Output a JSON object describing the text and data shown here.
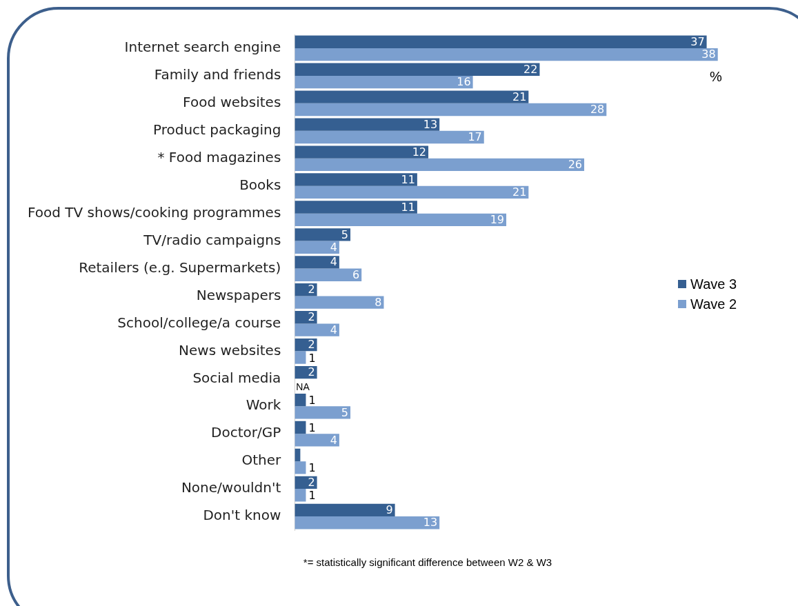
{
  "chart_data": {
    "type": "bar",
    "orientation": "horizontal",
    "categories": [
      "Internet search engine",
      "Family and friends",
      "Food websites",
      "Product packaging",
      "* Food magazines",
      "Books",
      "Food TV shows/cooking programmes",
      "TV/radio campaigns",
      "Retailers (e.g. Supermarkets)",
      "Newspapers",
      "School/college/a course",
      "News websites",
      "Social media",
      "Work",
      "Doctor/GP",
      "Other",
      "None/wouldn't",
      "Don't know"
    ],
    "series": [
      {
        "name": "Wave 3",
        "color": "#355f91",
        "values": [
          37,
          22,
          21,
          13,
          12,
          11,
          11,
          5,
          4,
          2,
          2,
          2,
          2,
          1,
          1,
          0.5,
          2,
          9
        ],
        "value_labels": [
          "37",
          "22",
          "21",
          "13",
          "12",
          "11",
          "11",
          "5",
          "4",
          "2",
          "2",
          "2",
          "2",
          "1",
          "1",
          null,
          "2",
          "9"
        ]
      },
      {
        "name": "Wave 2",
        "color": "#7b9fcf",
        "values": [
          38,
          16,
          28,
          17,
          26,
          21,
          19,
          4,
          6,
          8,
          4,
          1,
          null,
          5,
          4,
          1,
          1,
          13
        ],
        "value_labels": [
          "38",
          "16",
          "28",
          "17",
          "26",
          "21",
          "19",
          "4",
          "6",
          "8",
          "4",
          "1",
          "NA",
          "5",
          "4",
          "1",
          "1",
          "13"
        ]
      }
    ],
    "legend": "right",
    "grid": false,
    "tick_labels": "y",
    "annotations": [
      "%",
      "*= statistically significant difference between W2 & W3"
    ]
  }
}
